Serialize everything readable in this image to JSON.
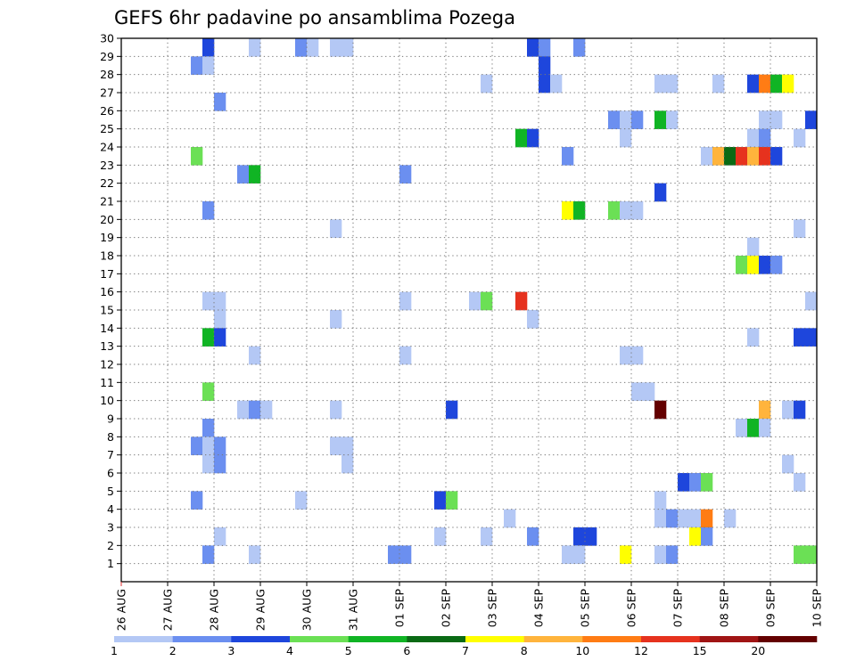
{
  "chart_data": {
    "type": "heatmap",
    "title": "GEFS 6hr padavine po ansamblima Pozega",
    "xlabel": "",
    "ylabel": "",
    "x_start": "26 AUG 00Z",
    "x_step_hours": 6,
    "x_steps": 60,
    "x_tick_labels": [
      "26 AUG",
      "27 AUG",
      "28 AUG",
      "29 AUG",
      "30 AUG",
      "31 AUG",
      "01 SEP",
      "02 SEP",
      "03 SEP",
      "04 SEP",
      "05 SEP",
      "06 SEP",
      "07 SEP",
      "08 SEP",
      "09 SEP",
      "10 SEP"
    ],
    "y_tick_labels": [
      "1",
      "2",
      "3",
      "4",
      "5",
      "6",
      "7",
      "8",
      "9",
      "10",
      "11",
      "12",
      "13",
      "14",
      "15",
      "16",
      "17",
      "18",
      "19",
      "20",
      "21",
      "22",
      "23",
      "24",
      "25",
      "26",
      "27",
      "28",
      "29",
      "30"
    ],
    "ylim": [
      0,
      30
    ],
    "grid": true,
    "colorbar": {
      "levels": [
        1,
        2,
        3,
        4,
        5,
        6,
        7,
        8,
        10,
        12,
        15,
        20
      ],
      "labels": [
        "1",
        "2",
        "3",
        "4",
        "5",
        "6",
        "7",
        "8",
        "10",
        "12",
        "15",
        "20"
      ],
      "colors": [
        "#b4c8f5",
        "#6b8ff0",
        "#1e46dc",
        "#6be055",
        "#10b424",
        "#0a6a14",
        "#ffff00",
        "#ffb43c",
        "#ff7c14",
        "#e6321e",
        "#a01414",
        "#640000"
      ]
    },
    "cells": [
      {
        "m": 30,
        "t": 8,
        "c": 3
      },
      {
        "m": 30,
        "t": 12,
        "c": 1
      },
      {
        "m": 30,
        "t": 16,
        "c": 2
      },
      {
        "m": 30,
        "t": 17,
        "c": 1
      },
      {
        "m": 30,
        "t": 19,
        "c": 1
      },
      {
        "m": 30,
        "t": 20,
        "c": 1
      },
      {
        "m": 30,
        "t": 36,
        "c": 3
      },
      {
        "m": 30,
        "t": 37,
        "c": 2
      },
      {
        "m": 30,
        "t": 40,
        "c": 2
      },
      {
        "m": 29,
        "t": 7,
        "c": 2
      },
      {
        "m": 29,
        "t": 8,
        "c": 1
      },
      {
        "m": 29,
        "t": 37,
        "c": 3
      },
      {
        "m": 28,
        "t": 32,
        "c": 1
      },
      {
        "m": 28,
        "t": 37,
        "c": 3
      },
      {
        "m": 28,
        "t": 38,
        "c": 1
      },
      {
        "m": 28,
        "t": 47,
        "c": 1
      },
      {
        "m": 28,
        "t": 48,
        "c": 1
      },
      {
        "m": 28,
        "t": 52,
        "c": 1
      },
      {
        "m": 28,
        "t": 55,
        "c": 3
      },
      {
        "m": 28,
        "t": 56,
        "c": 9
      },
      {
        "m": 28,
        "t": 57,
        "c": 5
      },
      {
        "m": 28,
        "t": 58,
        "c": 7
      },
      {
        "m": 27,
        "t": 9,
        "c": 2
      },
      {
        "m": 26,
        "t": 43,
        "c": 2
      },
      {
        "m": 26,
        "t": 44,
        "c": 1
      },
      {
        "m": 26,
        "t": 45,
        "c": 2
      },
      {
        "m": 26,
        "t": 47,
        "c": 5
      },
      {
        "m": 26,
        "t": 48,
        "c": 1
      },
      {
        "m": 26,
        "t": 56,
        "c": 1
      },
      {
        "m": 26,
        "t": 57,
        "c": 1
      },
      {
        "m": 26,
        "t": 60,
        "c": 3
      },
      {
        "m": 25,
        "t": 35,
        "c": 5
      },
      {
        "m": 25,
        "t": 36,
        "c": 3
      },
      {
        "m": 25,
        "t": 44,
        "c": 1
      },
      {
        "m": 25,
        "t": 55,
        "c": 1
      },
      {
        "m": 25,
        "t": 56,
        "c": 2
      },
      {
        "m": 25,
        "t": 59,
        "c": 1
      },
      {
        "m": 24,
        "t": 7,
        "c": 4
      },
      {
        "m": 24,
        "t": 39,
        "c": 2
      },
      {
        "m": 24,
        "t": 51,
        "c": 1
      },
      {
        "m": 24,
        "t": 52,
        "c": 8
      },
      {
        "m": 24,
        "t": 53,
        "c": 6
      },
      {
        "m": 24,
        "t": 54,
        "c": 10
      },
      {
        "m": 24,
        "t": 55,
        "c": 8
      },
      {
        "m": 24,
        "t": 56,
        "c": 10
      },
      {
        "m": 24,
        "t": 57,
        "c": 3
      },
      {
        "m": 23,
        "t": 11,
        "c": 2
      },
      {
        "m": 23,
        "t": 12,
        "c": 5
      },
      {
        "m": 23,
        "t": 25,
        "c": 2
      },
      {
        "m": 22,
        "t": 47,
        "c": 3
      },
      {
        "m": 21,
        "t": 8,
        "c": 2
      },
      {
        "m": 21,
        "t": 39,
        "c": 7
      },
      {
        "m": 21,
        "t": 40,
        "c": 5
      },
      {
        "m": 21,
        "t": 43,
        "c": 4
      },
      {
        "m": 21,
        "t": 44,
        "c": 1
      },
      {
        "m": 21,
        "t": 45,
        "c": 1
      },
      {
        "m": 20,
        "t": 19,
        "c": 1
      },
      {
        "m": 20,
        "t": 59,
        "c": 1
      },
      {
        "m": 19,
        "t": 55,
        "c": 1
      },
      {
        "m": 18,
        "t": 54,
        "c": 4
      },
      {
        "m": 18,
        "t": 55,
        "c": 7
      },
      {
        "m": 18,
        "t": 56,
        "c": 3
      },
      {
        "m": 18,
        "t": 57,
        "c": 2
      },
      {
        "m": 16,
        "t": 8,
        "c": 1
      },
      {
        "m": 16,
        "t": 9,
        "c": 1
      },
      {
        "m": 16,
        "t": 25,
        "c": 1
      },
      {
        "m": 16,
        "t": 31,
        "c": 1
      },
      {
        "m": 16,
        "t": 32,
        "c": 4
      },
      {
        "m": 16,
        "t": 35,
        "c": 10
      },
      {
        "m": 16,
        "t": 60,
        "c": 1
      },
      {
        "m": 15,
        "t": 9,
        "c": 1
      },
      {
        "m": 15,
        "t": 19,
        "c": 1
      },
      {
        "m": 15,
        "t": 36,
        "c": 1
      },
      {
        "m": 14,
        "t": 8,
        "c": 5
      },
      {
        "m": 14,
        "t": 9,
        "c": 3
      },
      {
        "m": 14,
        "t": 55,
        "c": 1
      },
      {
        "m": 14,
        "t": 59,
        "c": 3
      },
      {
        "m": 14,
        "t": 60,
        "c": 3
      },
      {
        "m": 13,
        "t": 12,
        "c": 1
      },
      {
        "m": 13,
        "t": 25,
        "c": 1
      },
      {
        "m": 13,
        "t": 44,
        "c": 1
      },
      {
        "m": 13,
        "t": 45,
        "c": 1
      },
      {
        "m": 11,
        "t": 8,
        "c": 4
      },
      {
        "m": 11,
        "t": 45,
        "c": 1
      },
      {
        "m": 11,
        "t": 46,
        "c": 1
      },
      {
        "m": 10,
        "t": 11,
        "c": 1
      },
      {
        "m": 10,
        "t": 12,
        "c": 2
      },
      {
        "m": 10,
        "t": 13,
        "c": 1
      },
      {
        "m": 10,
        "t": 19,
        "c": 1
      },
      {
        "m": 10,
        "t": 29,
        "c": 3
      },
      {
        "m": 10,
        "t": 47,
        "c": 12
      },
      {
        "m": 10,
        "t": 56,
        "c": 8
      },
      {
        "m": 10,
        "t": 58,
        "c": 1
      },
      {
        "m": 10,
        "t": 59,
        "c": 3
      },
      {
        "m": 9,
        "t": 8,
        "c": 2
      },
      {
        "m": 9,
        "t": 54,
        "c": 1
      },
      {
        "m": 9,
        "t": 55,
        "c": 5
      },
      {
        "m": 9,
        "t": 56,
        "c": 1
      },
      {
        "m": 8,
        "t": 7,
        "c": 2
      },
      {
        "m": 8,
        "t": 8,
        "c": 1
      },
      {
        "m": 8,
        "t": 9,
        "c": 2
      },
      {
        "m": 8,
        "t": 19,
        "c": 1
      },
      {
        "m": 8,
        "t": 20,
        "c": 1
      },
      {
        "m": 7,
        "t": 8,
        "c": 1
      },
      {
        "m": 7,
        "t": 9,
        "c": 2
      },
      {
        "m": 7,
        "t": 20,
        "c": 1
      },
      {
        "m": 7,
        "t": 58,
        "c": 1
      },
      {
        "m": 6,
        "t": 49,
        "c": 3
      },
      {
        "m": 6,
        "t": 50,
        "c": 2
      },
      {
        "m": 6,
        "t": 51,
        "c": 4
      },
      {
        "m": 6,
        "t": 59,
        "c": 1
      },
      {
        "m": 5,
        "t": 7,
        "c": 2
      },
      {
        "m": 5,
        "t": 16,
        "c": 1
      },
      {
        "m": 5,
        "t": 28,
        "c": 3
      },
      {
        "m": 5,
        "t": 29,
        "c": 4
      },
      {
        "m": 5,
        "t": 47,
        "c": 1
      },
      {
        "m": 4,
        "t": 34,
        "c": 1
      },
      {
        "m": 4,
        "t": 47,
        "c": 1
      },
      {
        "m": 4,
        "t": 48,
        "c": 2
      },
      {
        "m": 4,
        "t": 49,
        "c": 1
      },
      {
        "m": 4,
        "t": 50,
        "c": 1
      },
      {
        "m": 4,
        "t": 51,
        "c": 9
      },
      {
        "m": 4,
        "t": 53,
        "c": 1
      },
      {
        "m": 3,
        "t": 9,
        "c": 1
      },
      {
        "m": 3,
        "t": 28,
        "c": 1
      },
      {
        "m": 3,
        "t": 32,
        "c": 1
      },
      {
        "m": 3,
        "t": 36,
        "c": 2
      },
      {
        "m": 3,
        "t": 40,
        "c": 3
      },
      {
        "m": 3,
        "t": 41,
        "c": 3
      },
      {
        "m": 3,
        "t": 50,
        "c": 7
      },
      {
        "m": 3,
        "t": 51,
        "c": 2
      },
      {
        "m": 2,
        "t": 8,
        "c": 2
      },
      {
        "m": 2,
        "t": 12,
        "c": 1
      },
      {
        "m": 2,
        "t": 24,
        "c": 2
      },
      {
        "m": 2,
        "t": 25,
        "c": 2
      },
      {
        "m": 2,
        "t": 39,
        "c": 1
      },
      {
        "m": 2,
        "t": 40,
        "c": 1
      },
      {
        "m": 2,
        "t": 44,
        "c": 7
      },
      {
        "m": 2,
        "t": 47,
        "c": 1
      },
      {
        "m": 2,
        "t": 48,
        "c": 2
      },
      {
        "m": 2,
        "t": 59,
        "c": 4
      },
      {
        "m": 2,
        "t": 60,
        "c": 4
      }
    ]
  }
}
